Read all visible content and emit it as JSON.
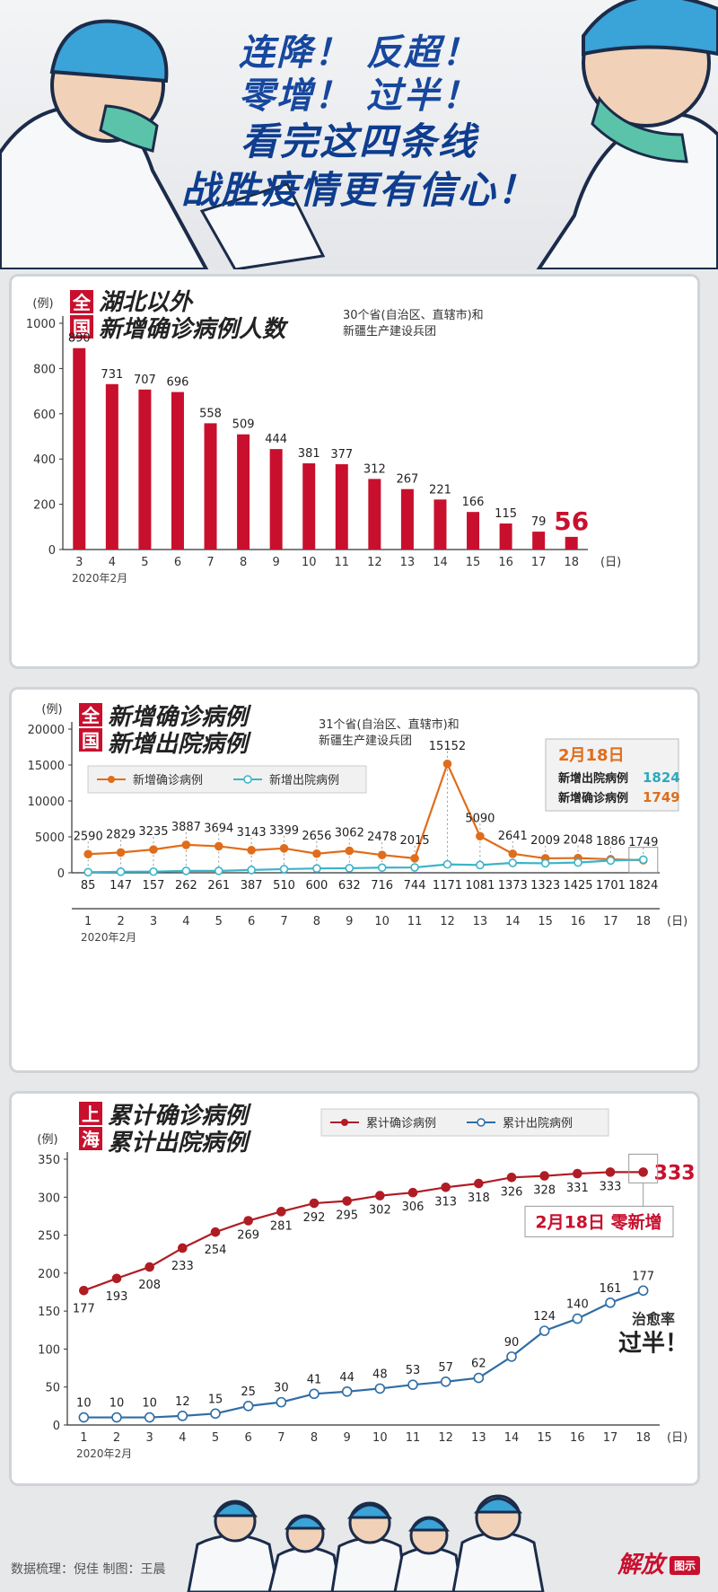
{
  "header": {
    "line1": "连降！ 反超！",
    "line2": "零增！ 过半！",
    "line3": "看完这四条线",
    "line4": "战胜疫情更有信心！"
  },
  "chart_data": [
    {
      "type": "bar",
      "badge": [
        "全",
        "国"
      ],
      "title": "湖北以外",
      "title2": "新增确诊病例人数",
      "subtitle": [
        "30个省(自治区、直辖市)和",
        "新疆生产建设兵团"
      ],
      "ylabel": "(例)",
      "xlabel": "(日)",
      "x_note": "2020年2月",
      "ylim": [
        0,
        1000
      ],
      "yticks": [
        0,
        200,
        400,
        600,
        800,
        1000
      ],
      "categories": [
        "3",
        "4",
        "5",
        "6",
        "7",
        "8",
        "9",
        "10",
        "11",
        "12",
        "13",
        "14",
        "15",
        "16",
        "17",
        "18"
      ],
      "values": [
        890,
        731,
        707,
        696,
        558,
        509,
        444,
        381,
        377,
        312,
        267,
        221,
        166,
        115,
        79,
        56
      ],
      "bar_color": "#c8102e"
    },
    {
      "type": "line",
      "badge": [
        "全",
        "国"
      ],
      "title": "新增确诊病例",
      "title2": "新增出院病例",
      "subtitle": [
        "31个省(自治区、直辖市)和",
        "新疆生产建设兵团"
      ],
      "ylabel": "(例)",
      "xlabel": "(日)",
      "x_note": "2020年2月",
      "ylim": [
        0,
        20000
      ],
      "yticks": [
        0,
        5000,
        10000,
        15000,
        20000
      ],
      "x": [
        "1",
        "2",
        "3",
        "4",
        "5",
        "6",
        "7",
        "8",
        "9",
        "10",
        "11",
        "12",
        "13",
        "14",
        "15",
        "16",
        "17",
        "18"
      ],
      "series": [
        {
          "name": "新增确诊病例",
          "color": "#e06d1b",
          "values": [
            2590,
            2829,
            3235,
            3887,
            3694,
            3143,
            3399,
            2656,
            3062,
            2478,
            2015,
            15152,
            5090,
            2641,
            2009,
            2048,
            1886,
            1749
          ]
        },
        {
          "name": "新增出院病例",
          "color": "#3bb4c8",
          "values": [
            85,
            147,
            157,
            262,
            261,
            387,
            510,
            600,
            632,
            716,
            744,
            1171,
            1081,
            1373,
            1323,
            1425,
            1701,
            1824
          ]
        }
      ],
      "annotation": {
        "date": "2月18日",
        "rows": [
          {
            "label": "新增出院病例",
            "value": "1824",
            "color": "#2ea9bf"
          },
          {
            "label": "新增确诊病例",
            "value": "1749",
            "color": "#e06d1b"
          }
        ]
      }
    },
    {
      "type": "line",
      "badge": [
        "上",
        "海"
      ],
      "title": "累计确诊病例",
      "title2": "累计出院病例",
      "ylabel": "(例)",
      "xlabel": "(日)",
      "x_note": "2020年2月",
      "ylim": [
        0,
        350
      ],
      "yticks": [
        0,
        50,
        100,
        150,
        200,
        250,
        300,
        350
      ],
      "x": [
        "1",
        "2",
        "3",
        "4",
        "5",
        "6",
        "7",
        "8",
        "9",
        "10",
        "11",
        "12",
        "13",
        "14",
        "15",
        "16",
        "17",
        "18"
      ],
      "series": [
        {
          "name": "累计确诊病例",
          "color": "#b01c24",
          "values": [
            177,
            193,
            208,
            233,
            254,
            269,
            281,
            292,
            295,
            302,
            306,
            313,
            318,
            326,
            328,
            331,
            333,
            333
          ]
        },
        {
          "name": "累计出院病例",
          "color": "#2f6da5",
          "values": [
            10,
            10,
            10,
            12,
            15,
            25,
            30,
            41,
            44,
            48,
            53,
            57,
            62,
            90,
            124,
            140,
            161,
            177
          ]
        }
      ],
      "callout": "2月18日 零新增",
      "note": [
        "治愈率",
        "过半！"
      ]
    }
  ],
  "footer": {
    "credit": "数据梳理：倪佳   制图：王晨",
    "brand": "解放",
    "brand_tag": "图示"
  }
}
